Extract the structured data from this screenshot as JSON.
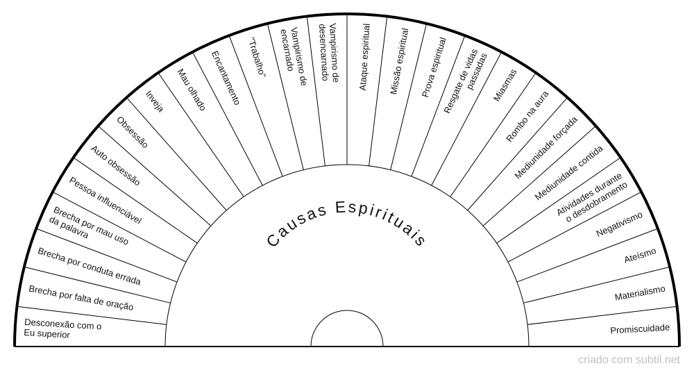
{
  "title": "Causas Espirituais",
  "watermark": "criado com subtil.net",
  "colors": {
    "stroke": "#000000",
    "fill": "#ffffff",
    "text": "#111111",
    "watermark": "#c0c0c0"
  },
  "sectors": [
    [
      "Desconexão com o",
      "Eu superior"
    ],
    [
      "Brecha por falta de oração"
    ],
    [
      "Brecha por conduta errada"
    ],
    [
      "Brecha por mau uso",
      "da palavra"
    ],
    [
      "Pessoa influenciável"
    ],
    [
      "Auto obsessão"
    ],
    [
      "Obsessão"
    ],
    [
      "Inveja"
    ],
    [
      "Mau olhado"
    ],
    [
      "Encantamento"
    ],
    [
      "\"Trabalho\""
    ],
    [
      "Vampirismo de",
      "encarnado"
    ],
    [
      "Vampirismo de",
      "desencarnado"
    ],
    [
      "Ataque espiritual"
    ],
    [
      "Missão espiritual"
    ],
    [
      "Prova espiritual"
    ],
    [
      "Resgate de vidas",
      "passadas"
    ],
    [
      "Miasmas"
    ],
    [
      "Rombo na aura"
    ],
    [
      "Mediunidade forçada"
    ],
    [
      "Mediunidade contida"
    ],
    [
      "Atividades durante",
      "o desdobramento"
    ],
    [
      "Negativismo"
    ],
    [
      "Ateísmo"
    ],
    [
      "Materialismo"
    ],
    [
      "Promiscuidade"
    ]
  ]
}
